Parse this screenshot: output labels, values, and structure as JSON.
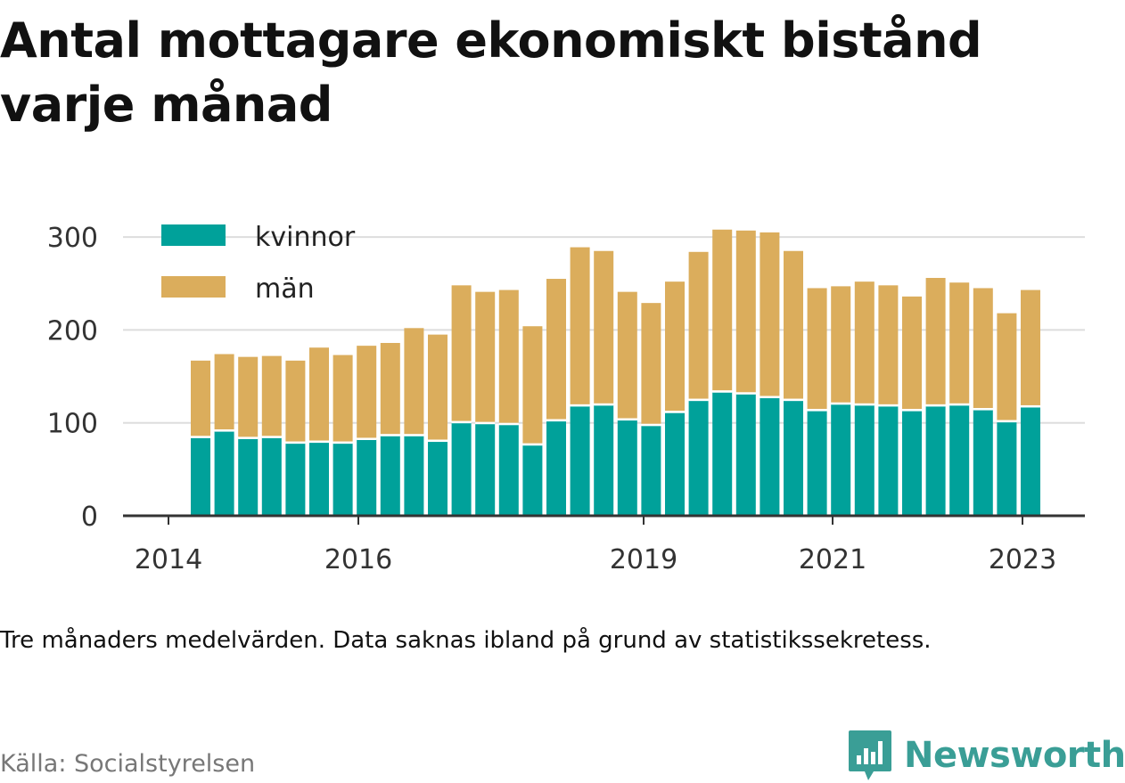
{
  "title": "Antal mottagare ekonomiskt bistånd varje månad",
  "note": "Tre månaders medelvärden. Data saknas ibland på grund av statistikssekretess.",
  "source": "Källa: Socialstyrelsen",
  "brand": {
    "name": "Newsworthy",
    "color": "#3a9e96",
    "logo_icon": "newsworthy-chart-bubble-icon"
  },
  "chart_data": {
    "type": "bar",
    "stacked": true,
    "x_tick_labels": [
      "2014",
      "2016",
      "2019",
      "2021",
      "2023"
    ],
    "y_ticks": [
      0,
      100,
      200,
      300
    ],
    "ylim": [
      0,
      310
    ],
    "grid": true,
    "legend_position": "top-left",
    "series": [
      {
        "name": "kvinnor",
        "color": "#00a19a",
        "values": [
          84,
          91,
          83,
          84,
          78,
          79,
          78,
          82,
          86,
          86,
          80,
          100,
          99,
          98,
          76,
          102,
          118,
          119,
          103,
          97,
          111,
          124,
          133,
          131,
          127,
          124,
          113,
          120,
          119,
          118,
          113,
          118,
          119,
          114,
          101,
          117
        ]
      },
      {
        "name": "män",
        "color": "#dbad5c",
        "values": [
          83,
          83,
          88,
          88,
          89,
          102,
          95,
          101,
          100,
          116,
          115,
          148,
          142,
          145,
          128,
          153,
          171,
          166,
          138,
          132,
          141,
          160,
          175,
          176,
          178,
          161,
          132,
          127,
          133,
          130,
          123,
          138,
          132,
          131,
          117,
          126
        ]
      }
    ],
    "xlabel": "",
    "ylabel": ""
  }
}
